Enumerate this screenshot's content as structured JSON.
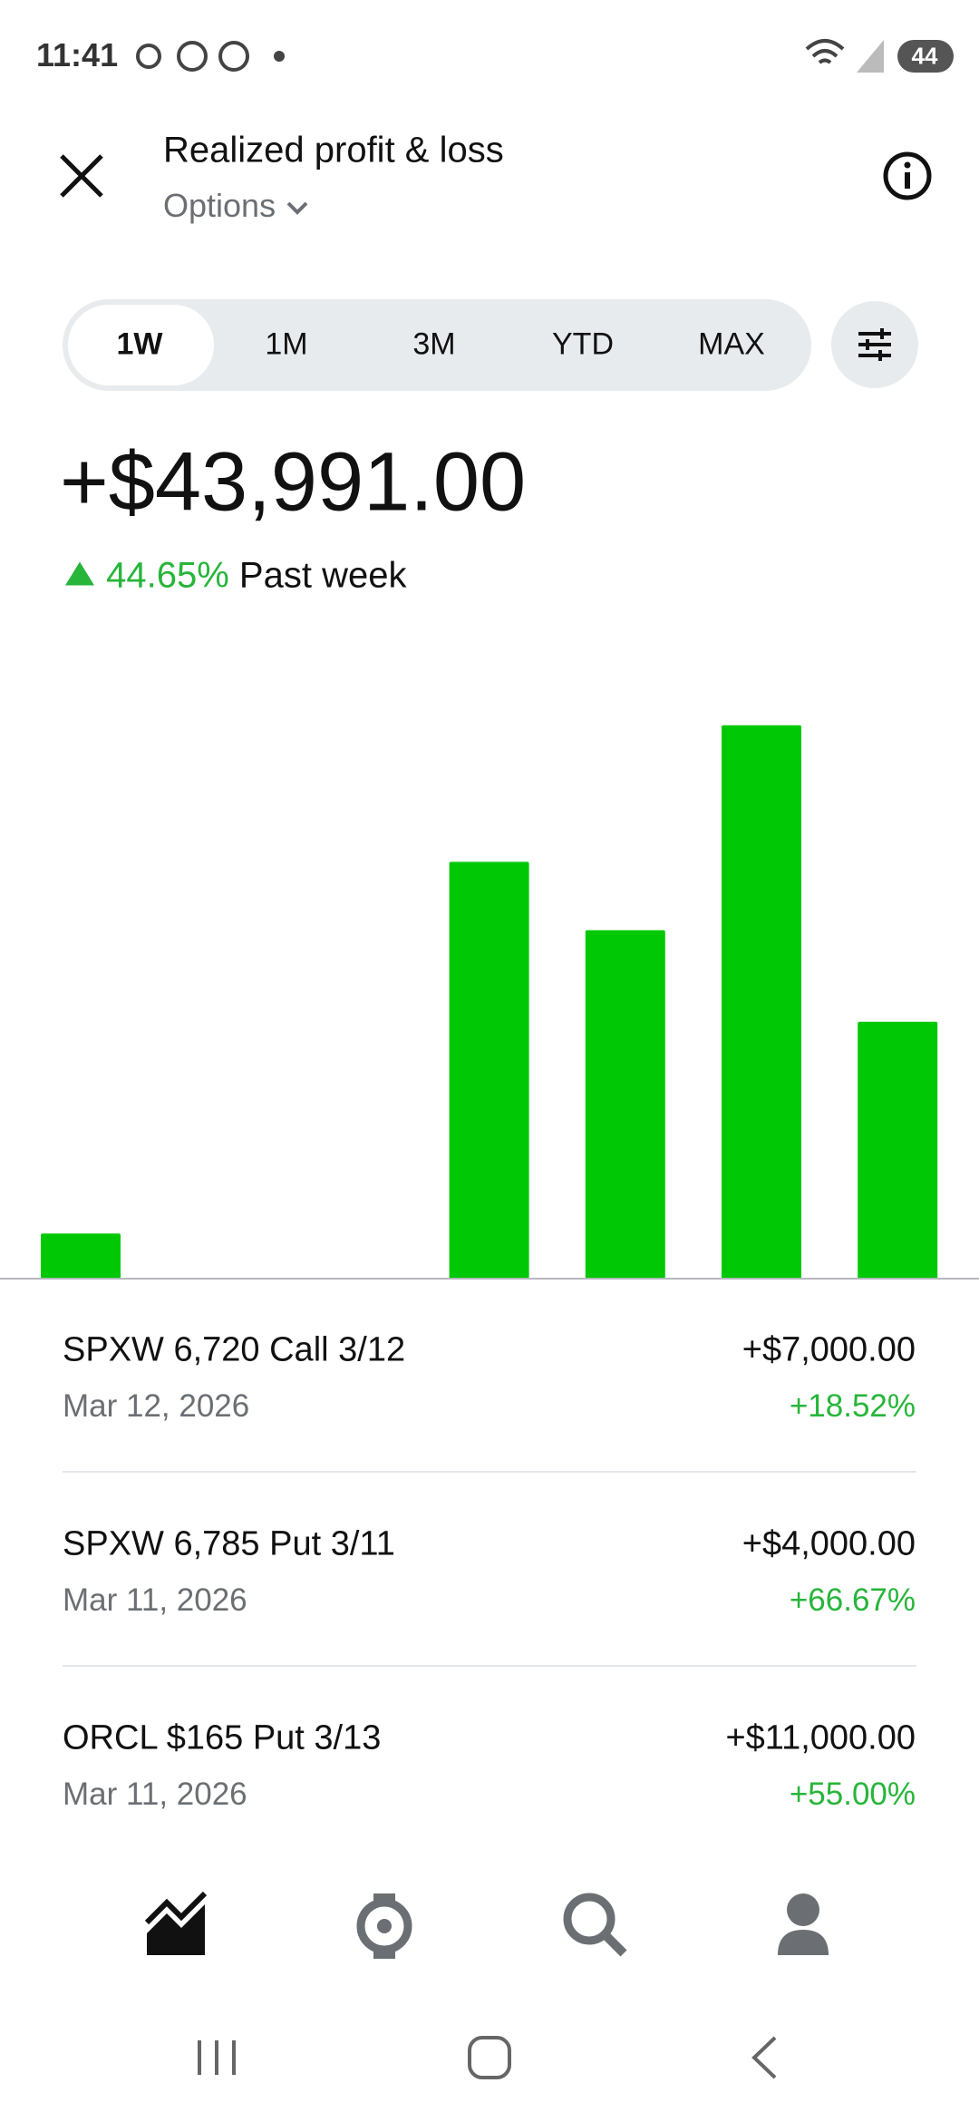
{
  "status_bar": {
    "time": "11:41",
    "battery": "44"
  },
  "header": {
    "title": "Realized profit & loss",
    "subtitle": "Options"
  },
  "tabs": [
    "1W",
    "1M",
    "3M",
    "YTD",
    "MAX"
  ],
  "summary": {
    "amount": "+$43,991.00",
    "change": "44.65%",
    "period": "Past week"
  },
  "chart_data": {
    "type": "bar",
    "values": [
      1224,
      0,
      0,
      11313,
      9458,
      15022,
      6973
    ],
    "color": "#00c805",
    "ylim": [
      0,
      16000
    ]
  },
  "trades": [
    {
      "name": "SPXW 6,720 Call 3/12",
      "date": "Mar 12, 2026",
      "amount": "+$7,000.00",
      "percent": "+18.52%"
    },
    {
      "name": "SPXW 6,785 Put 3/11",
      "date": "Mar 11, 2026",
      "amount": "+$4,000.00",
      "percent": "+66.67%"
    },
    {
      "name": "ORCL $165 Put 3/13",
      "date": "Mar 11, 2026",
      "amount": "+$11,000.00",
      "percent": "+55.00%"
    }
  ]
}
